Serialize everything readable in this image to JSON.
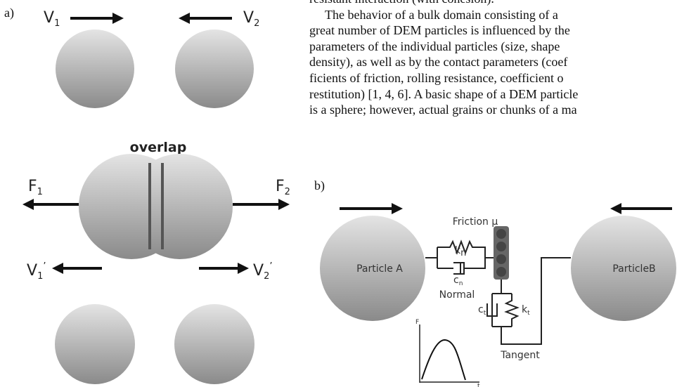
{
  "panel_a": {
    "label": "a)",
    "v1": {
      "symbol": "V",
      "sub": "1"
    },
    "v2": {
      "symbol": "V",
      "sub": "2"
    },
    "overlap": "overlap",
    "f1": {
      "symbol": "F",
      "sub": "1"
    },
    "f2": {
      "symbol": "F",
      "sub": "2"
    },
    "v1_after": {
      "symbol": "V",
      "sub": "1",
      "sup": "’"
    },
    "v2_after": {
      "symbol": "V",
      "sub": "2",
      "sup": "’"
    }
  },
  "panel_b": {
    "label": "b)",
    "particle_a": "Particle A",
    "particle_b": "ParticleB",
    "kn": {
      "symbol": "k",
      "sub": "n"
    },
    "cn": {
      "symbol": "c",
      "sub": "n"
    },
    "friction": "Friction μ",
    "normal": "Normal",
    "ct": {
      "symbol": "c",
      "sub": "t"
    },
    "kt": {
      "symbol": "k",
      "sub": "t"
    },
    "tangent": "Tangent",
    "plot_y": "F",
    "plot_x": "t"
  },
  "text": {
    "lines": [
      "resistant interaction (with cohesion).",
      "The behavior of a bulk domain consisting of a",
      "great number of DEM particles is influenced by the",
      "parameters of the individual particles (size, shape",
      "density), as well as by the contact parameters (coef",
      "ficients of friction, rolling resistance, coefficient o",
      "restitution) [1, 4, 6]. A basic shape of a DEM particle",
      "is a sphere; however, actual grains or chunks of a ma"
    ]
  }
}
